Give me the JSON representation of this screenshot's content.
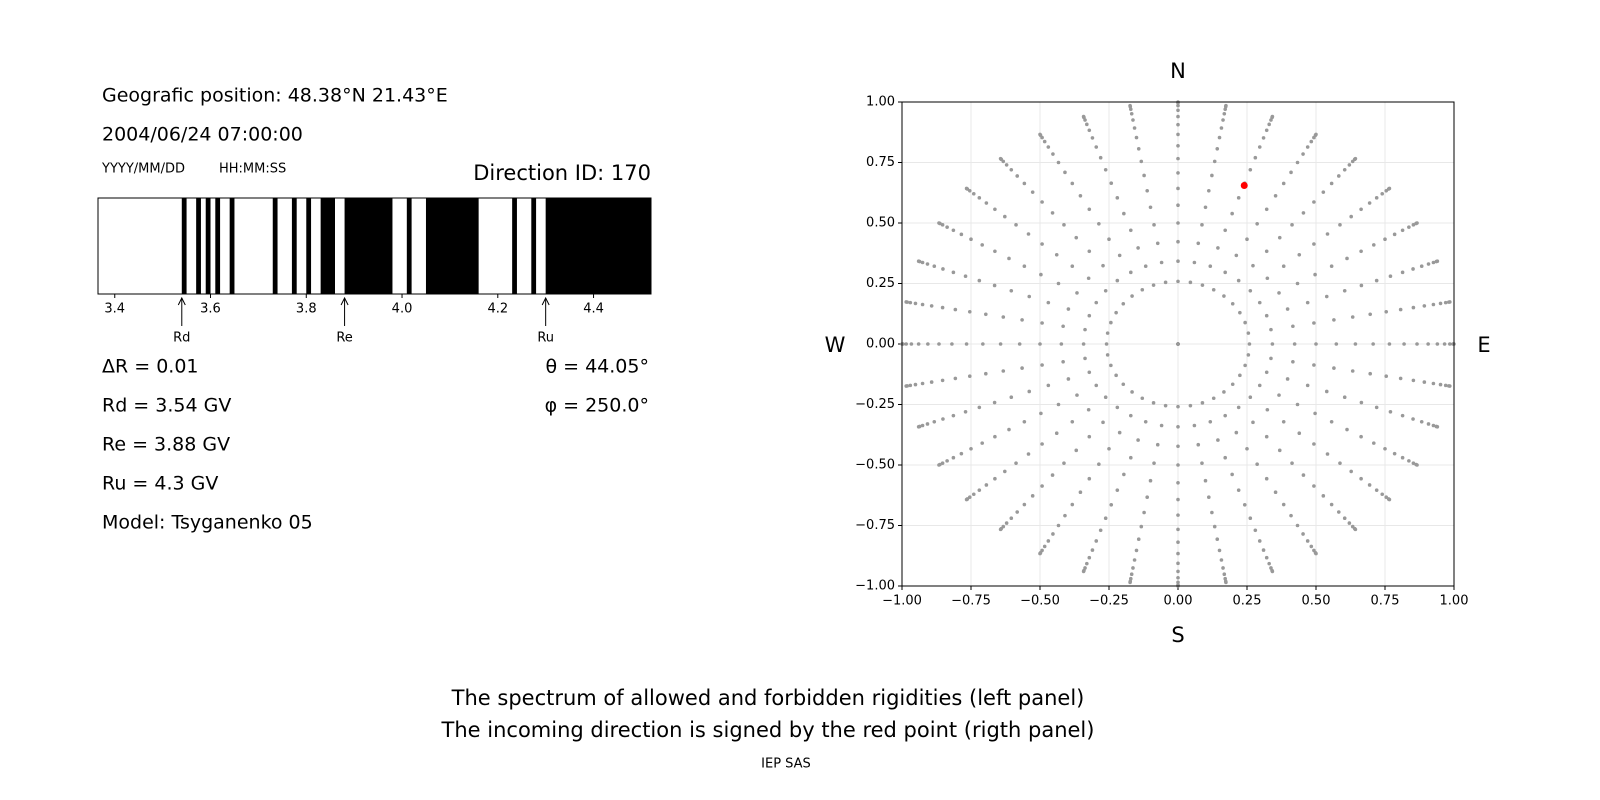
{
  "info": {
    "position": "Geografic position: 48.38°N 21.43°E",
    "datetime": "2004/06/24 07:00:00",
    "date_format": "YYYY/MM/DD",
    "time_format": "HH:MM:SS",
    "direction": "Direction ID: 170",
    "delta_r": "ΔR = 0.01",
    "rd": "Rd = 3.54 GV",
    "re": "Re = 3.88 GV",
    "ru": "Ru = 4.3 GV",
    "model": "Model: Tsyganenko 05",
    "theta": "θ = 44.05°",
    "phi": "φ = 250.0°"
  },
  "chart_data": [
    {
      "type": "spectrum",
      "xlim": [
        3.365,
        4.52
      ],
      "color": "#000000",
      "xticks": [
        3.4,
        3.6,
        3.8,
        {
          "value": 4.0,
          "label": "4.0"
        },
        4.2,
        4.4
      ],
      "forbidden": [
        [
          3.54,
          3.55
        ],
        [
          3.57,
          3.58
        ],
        [
          3.59,
          3.6
        ],
        [
          3.61,
          3.62
        ],
        [
          3.64,
          3.65
        ],
        [
          3.73,
          3.74
        ],
        [
          3.77,
          3.78
        ],
        [
          3.8,
          3.81
        ],
        [
          3.83,
          3.86
        ],
        [
          3.88,
          3.98
        ],
        [
          4.01,
          4.02
        ],
        [
          4.05,
          4.16
        ],
        [
          4.23,
          4.24
        ],
        [
          4.27,
          4.28
        ],
        [
          4.3,
          4.52
        ]
      ],
      "markers": [
        {
          "label": "Rd",
          "value": 3.54
        },
        {
          "label": "Re",
          "value": 3.88
        },
        {
          "label": "Ru",
          "value": 4.3
        }
      ]
    },
    {
      "type": "polar-scatter",
      "xlim": [
        -1,
        1
      ],
      "ylim": [
        -1,
        1
      ],
      "grid": true,
      "point_color": "#999999",
      "xticks": [
        {
          "value": -1,
          "label": "−1.00"
        },
        {
          "value": -0.75,
          "label": "−0.75"
        },
        {
          "value": -0.5,
          "label": "−0.50"
        },
        {
          "value": -0.25,
          "label": "−0.25"
        },
        {
          "value": 0,
          "label": "0.00"
        },
        {
          "value": 0.25,
          "label": "0.25"
        },
        {
          "value": 0.5,
          "label": "0.50"
        },
        {
          "value": 0.75,
          "label": "0.75"
        },
        {
          "value": 1,
          "label": "1.00"
        }
      ],
      "yticks": [
        {
          "value": -1,
          "label": "−1.00"
        },
        {
          "value": -0.75,
          "label": "−0.75"
        },
        {
          "value": -0.5,
          "label": "−0.50"
        },
        {
          "value": -0.25,
          "label": "−0.25"
        },
        {
          "value": 0,
          "label": "0.00"
        },
        {
          "value": 0.25,
          "label": "0.25"
        },
        {
          "value": 0.5,
          "label": "0.50"
        },
        {
          "value": 0.75,
          "label": "0.75"
        },
        {
          "value": 1,
          "label": "1.00"
        }
      ],
      "zenith": [
        0,
        15,
        20,
        25,
        30,
        35,
        40,
        45,
        50,
        55,
        60,
        65,
        70,
        75,
        80,
        85,
        90
      ],
      "azimuth": [
        0,
        10,
        20,
        30,
        40,
        50,
        60,
        70,
        80,
        90,
        100,
        110,
        120,
        130,
        140,
        150,
        160,
        170,
        180,
        190,
        200,
        210,
        220,
        230,
        240,
        250,
        260,
        270,
        280,
        290,
        300,
        310,
        320,
        330,
        340,
        350
      ],
      "highlight": {
        "x": 0.24,
        "y": 0.655,
        "color": "#ff0000"
      },
      "directions": {
        "north": "N",
        "south": "S",
        "west": "W",
        "east": "E"
      }
    }
  ],
  "caption": [
    "The spectrum of allowed and forbidden rigidities (left panel)",
    "The incoming direction is signed by the red point (rigth panel)"
  ],
  "credit": "IEP SAS"
}
